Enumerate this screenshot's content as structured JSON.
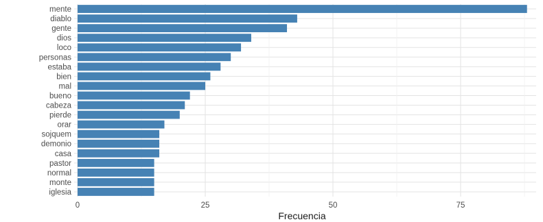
{
  "chart_data": {
    "type": "bar",
    "orientation": "horizontal",
    "categories": [
      "mente",
      "diablo",
      "gente",
      "dios",
      "loco",
      "personas",
      "estaba",
      "bien",
      "mal",
      "bueno",
      "cabeza",
      "pierde",
      "orar",
      "sojquem",
      "demonio",
      "casa",
      "pastor",
      "normal",
      "monte",
      "iglesia"
    ],
    "values": [
      88,
      43,
      41,
      34,
      32,
      30,
      28,
      26,
      25,
      22,
      21,
      20,
      17,
      16,
      16,
      16,
      15,
      15,
      15,
      15
    ],
    "xlabel": "Frecuencia",
    "ylabel": "",
    "xlim": [
      0,
      90
    ],
    "xticks": [
      0,
      25,
      50,
      75
    ],
    "xtick_labels": [
      "0",
      "25",
      "50",
      "75"
    ],
    "grid": true,
    "bar_color": "#4682B4"
  }
}
